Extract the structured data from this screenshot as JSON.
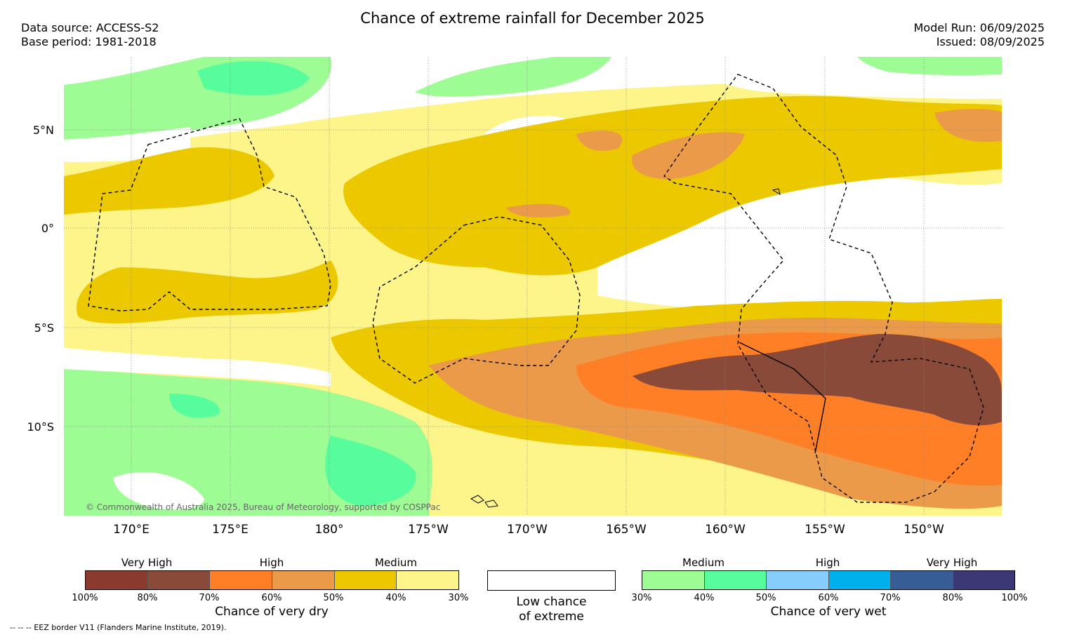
{
  "header": {
    "title": "Chance of extreme rainfall for December 2025",
    "data_source": "Data source: ACCESS-S2",
    "base_period": "Base period: 1981-2018",
    "model_run": "Model Run: 06/09/2025",
    "issued": "Issued: 08/09/2025"
  },
  "map": {
    "lat_labels": [
      "5°N",
      "0°",
      "5°S",
      "10°S"
    ],
    "lon_labels": [
      "170°E",
      "175°E",
      "180°",
      "175°W",
      "170°W",
      "165°W",
      "160°W",
      "155°W",
      "150°W"
    ],
    "copyright": "© Commonwealth of Australia 2025, Bureau of Meteorology, supported by COSPPac"
  },
  "legend_dry": {
    "title": "Chance of very dry",
    "categories": [
      "Very High",
      "High",
      "Medium"
    ],
    "ticks": [
      "100%",
      "80%",
      "70%",
      "60%",
      "50%",
      "40%",
      "30%"
    ],
    "colors": [
      "#8b3a2f",
      "#8a4a3a",
      "#ff7f27",
      "#ea9a48",
      "#ebc800",
      "#fdf58a"
    ]
  },
  "legend_low": {
    "line1": "Low chance",
    "line2": "of extreme",
    "color": "#ffffff"
  },
  "legend_wet": {
    "title": "Chance of very wet",
    "categories": [
      "Medium",
      "High",
      "Very High"
    ],
    "ticks": [
      "30%",
      "40%",
      "50%",
      "60%",
      "70%",
      "80%",
      "100%"
    ],
    "colors": [
      "#9efc94",
      "#57fc9c",
      "#87cdfb",
      "#00b0ec",
      "#375d97",
      "#3c3876"
    ]
  },
  "footnote": "--  --  -- EEZ border V11 (Flanders Marine Institute, 2019)."
}
